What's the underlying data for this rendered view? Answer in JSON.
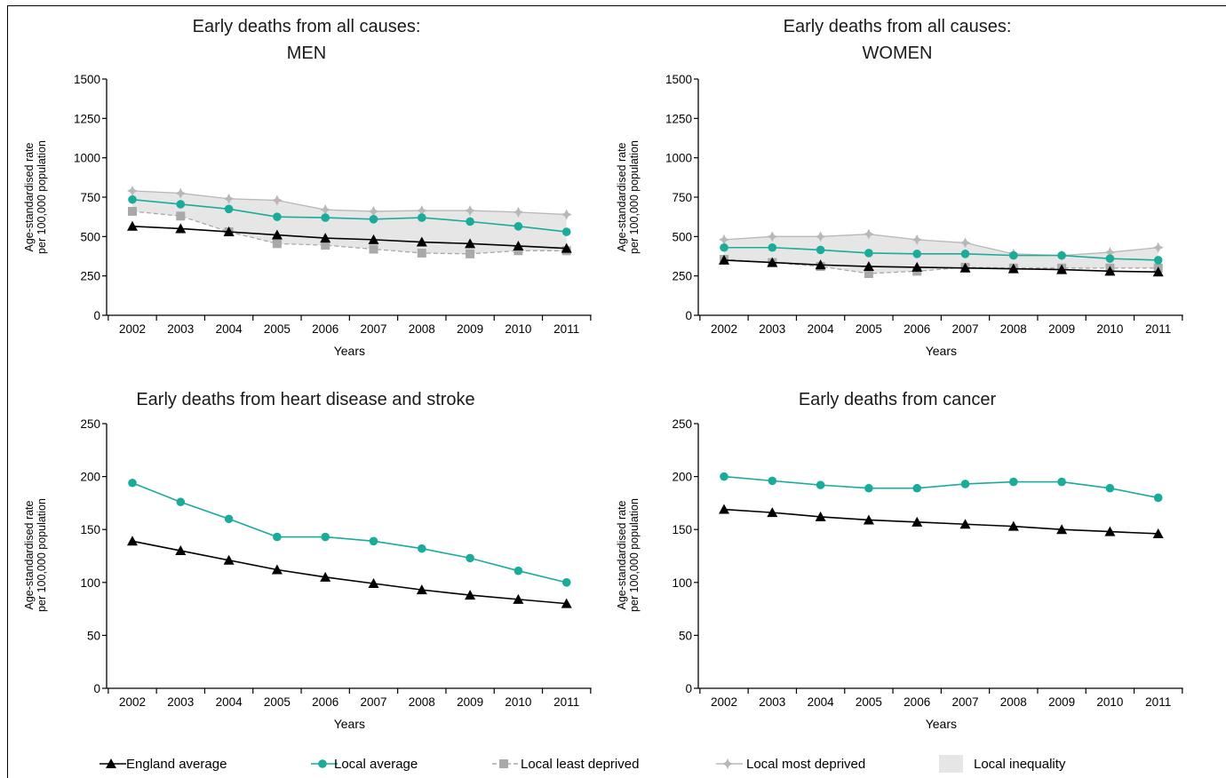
{
  "colors": {
    "england": "#000000",
    "local": "#1aab9b",
    "least": "#a9a9a9",
    "most": "#b8b8b8",
    "band": "#e6e6e6"
  },
  "legend": [
    {
      "key": "england",
      "label": "England average",
      "marker": "triangle"
    },
    {
      "key": "local",
      "label": "Local average",
      "marker": "circle"
    },
    {
      "key": "least",
      "label": "Local least deprived",
      "marker": "square"
    },
    {
      "key": "most",
      "label": "Local most deprived",
      "marker": "diamond"
    },
    {
      "key": "band",
      "label": "Local inequality",
      "marker": "box"
    }
  ],
  "chart_data": [
    {
      "type": "line",
      "title": [
        "Early deaths from all causes:",
        "MEN"
      ],
      "xlabel": "Years",
      "ylabel": [
        "Age-standardised rate",
        "per 100,000 population"
      ],
      "x": [
        "2002",
        "2003",
        "2004",
        "2005",
        "2006",
        "2007",
        "2008",
        "2009",
        "2010",
        "2011"
      ],
      "ylim": [
        0,
        1500
      ],
      "yticks": [
        0,
        250,
        500,
        750,
        1000,
        1250,
        1500
      ],
      "band": [
        "least",
        "most"
      ],
      "series": [
        {
          "name": "England average",
          "key": "england",
          "values": [
            565,
            550,
            530,
            510,
            490,
            480,
            465,
            455,
            440,
            425
          ]
        },
        {
          "name": "Local average",
          "key": "local",
          "values": [
            735,
            705,
            675,
            625,
            620,
            610,
            620,
            595,
            565,
            530
          ]
        },
        {
          "name": "Local least deprived",
          "key": "least",
          "values": [
            660,
            630,
            530,
            455,
            445,
            420,
            395,
            390,
            410,
            410
          ]
        },
        {
          "name": "Local most deprived",
          "key": "most",
          "values": [
            790,
            775,
            740,
            730,
            670,
            660,
            665,
            665,
            655,
            640
          ]
        }
      ]
    },
    {
      "type": "line",
      "title": [
        "Early deaths from all causes:",
        "WOMEN"
      ],
      "xlabel": "Years",
      "ylabel": [
        "Age-standardised rate",
        "per 100,000 population"
      ],
      "x": [
        "2002",
        "2003",
        "2004",
        "2005",
        "2006",
        "2007",
        "2008",
        "2009",
        "2010",
        "2011"
      ],
      "ylim": [
        0,
        1500
      ],
      "yticks": [
        0,
        250,
        500,
        750,
        1000,
        1250,
        1500
      ],
      "band": [
        "least",
        "most"
      ],
      "series": [
        {
          "name": "England average",
          "key": "england",
          "values": [
            350,
            335,
            320,
            310,
            305,
            300,
            295,
            290,
            280,
            275
          ]
        },
        {
          "name": "Local average",
          "key": "local",
          "values": [
            430,
            430,
            415,
            395,
            390,
            390,
            380,
            380,
            360,
            350
          ]
        },
        {
          "name": "Local least deprived",
          "key": "least",
          "values": [
            355,
            335,
            310,
            265,
            280,
            305,
            300,
            300,
            300,
            300
          ]
        },
        {
          "name": "Local most deprived",
          "key": "most",
          "values": [
            480,
            500,
            500,
            515,
            480,
            460,
            390,
            380,
            400,
            430
          ]
        }
      ]
    },
    {
      "type": "line",
      "title": [
        "Early deaths from heart disease and stroke"
      ],
      "xlabel": "Years",
      "ylabel": [
        "Age-standardised rate",
        "per 100,000 population"
      ],
      "x": [
        "2002",
        "2003",
        "2004",
        "2005",
        "2006",
        "2007",
        "2008",
        "2009",
        "2010",
        "2011"
      ],
      "ylim": [
        0,
        250
      ],
      "yticks": [
        0,
        50,
        100,
        150,
        200,
        250
      ],
      "series": [
        {
          "name": "England average",
          "key": "england",
          "values": [
            139,
            130,
            121,
            112,
            105,
            99,
            93,
            88,
            84,
            80
          ]
        },
        {
          "name": "Local average",
          "key": "local",
          "values": [
            194,
            176,
            160,
            143,
            143,
            139,
            132,
            123,
            111,
            100
          ]
        }
      ]
    },
    {
      "type": "line",
      "title": [
        "Early deaths from cancer"
      ],
      "xlabel": "Years",
      "ylabel": [
        "Age-standardised rate",
        "per 100,000 population"
      ],
      "x": [
        "2002",
        "2003",
        "2004",
        "2005",
        "2006",
        "2007",
        "2008",
        "2009",
        "2010",
        "2011"
      ],
      "ylim": [
        0,
        250
      ],
      "yticks": [
        0,
        50,
        100,
        150,
        200,
        250
      ],
      "series": [
        {
          "name": "England average",
          "key": "england",
          "values": [
            169,
            166,
            162,
            159,
            157,
            155,
            153,
            150,
            148,
            146
          ]
        },
        {
          "name": "Local average",
          "key": "local",
          "values": [
            200,
            196,
            192,
            189,
            189,
            193,
            195,
            195,
            189,
            180
          ]
        }
      ]
    }
  ]
}
